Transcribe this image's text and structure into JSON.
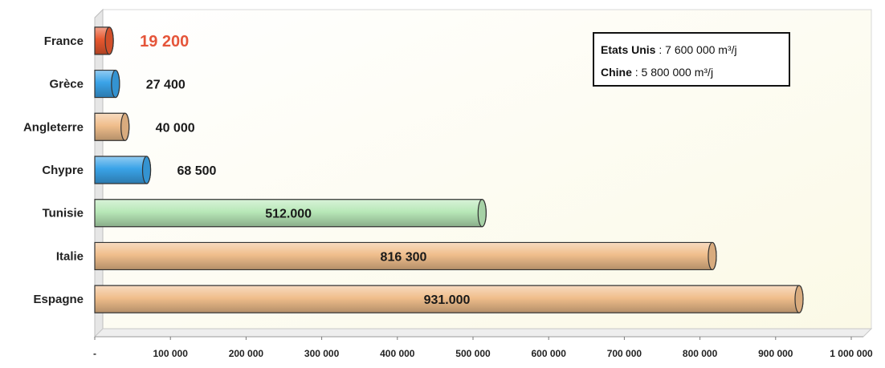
{
  "chart_data": {
    "type": "bar",
    "orientation": "horizontal",
    "categories": [
      "France",
      "Grèce",
      "Angleterre",
      "Chypre",
      "Tunisie",
      "Italie",
      "Espagne"
    ],
    "values": [
      19200,
      27400,
      40000,
      68500,
      512000,
      816300,
      931000
    ],
    "value_labels": [
      "19 200",
      "27 400",
      "40 000",
      "68 500",
      "512.000",
      "816 300",
      "931.000"
    ],
    "bar_colors": [
      "#e8582f",
      "#3aa3e8",
      "#f0be8c",
      "#3aa3e8",
      "#b8e8b8",
      "#f0be8c",
      "#f0be8c"
    ],
    "highlight_label_color": "#e5553a",
    "x_ticks": [
      "-",
      "100 000",
      "200 000",
      "300 000",
      "400 000",
      "500 000",
      "600 000",
      "700 000",
      "800 000",
      "900 000",
      "1 000 000"
    ],
    "xlim": [
      0,
      1000000
    ],
    "grid": false,
    "title": "",
    "xlabel": "",
    "ylabel": "",
    "legend_placement": "top-right",
    "annotation": {
      "line1_label": "Etats Unis",
      "line1_value": " : 7 600 000 m³/j",
      "line2_label": "Chine",
      "line2_value": " : 5 800 000 m³/j"
    }
  }
}
